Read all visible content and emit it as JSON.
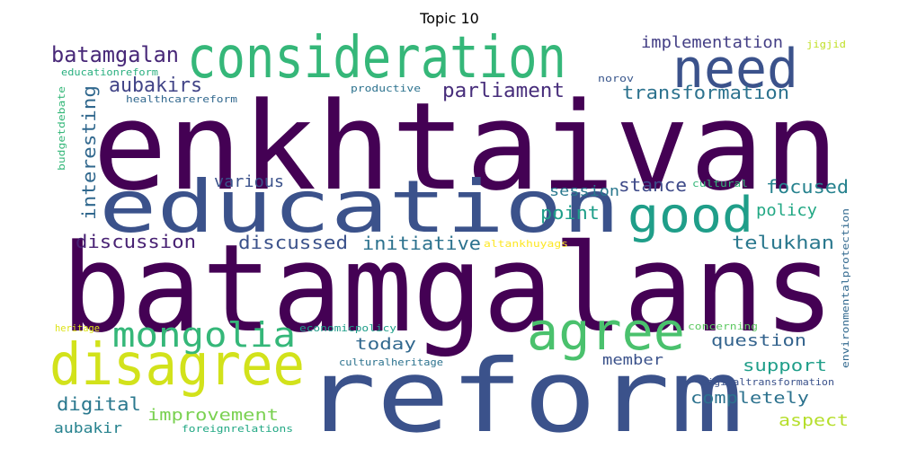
{
  "title": "Topic 10",
  "palette": {
    "purple": "#440154",
    "indigo": "#3b528b",
    "teal": "#21918c",
    "green": "#5ec962",
    "yellow": "#fde725"
  },
  "words": [
    {
      "text": "enkhtaivan",
      "color": "#440154",
      "weight": 1.0
    },
    {
      "text": "batamgalans",
      "color": "#440154",
      "weight": 0.98
    },
    {
      "text": "reform",
      "color": "#3b528b",
      "weight": 0.8
    },
    {
      "text": "education",
      "color": "#3b528b",
      "weight": 0.58
    },
    {
      "text": "consideration",
      "color": "#35b779",
      "weight": 0.47
    },
    {
      "text": "disagree",
      "color": "#d2e21b",
      "weight": 0.44
    },
    {
      "text": "need",
      "color": "#3b528b",
      "weight": 0.42
    },
    {
      "text": "agree",
      "color": "#4ac16d",
      "weight": 0.4
    },
    {
      "text": "good",
      "color": "#1f9e89",
      "weight": 0.38
    },
    {
      "text": "mongolia",
      "color": "#35b779",
      "weight": 0.26
    },
    {
      "text": "batamgalan",
      "color": "#482878",
      "weight": 0.17
    },
    {
      "text": "parliament",
      "color": "#472d7b",
      "weight": 0.16
    },
    {
      "text": "transformation",
      "color": "#2c728e",
      "weight": 0.15
    },
    {
      "text": "aubakirs",
      "color": "#414487",
      "weight": 0.15
    },
    {
      "text": "interesting",
      "color": "#31688e",
      "weight": 0.14
    },
    {
      "text": "implementation",
      "color": "#433e85",
      "weight": 0.13
    },
    {
      "text": "stance",
      "color": "#3e4a89",
      "weight": 0.14
    },
    {
      "text": "focused",
      "color": "#26828e",
      "weight": 0.14
    },
    {
      "text": "various",
      "color": "#3b528b",
      "weight": 0.13
    },
    {
      "text": "session",
      "color": "#2a788e",
      "weight": 0.12
    },
    {
      "text": "point",
      "color": "#1f9e89",
      "weight": 0.13
    },
    {
      "text": "policy",
      "color": "#22a884",
      "weight": 0.12
    },
    {
      "text": "discussion",
      "color": "#482173",
      "weight": 0.14
    },
    {
      "text": "discussed",
      "color": "#3b528b",
      "weight": 0.14
    },
    {
      "text": "initiative",
      "color": "#2c728e",
      "weight": 0.14
    },
    {
      "text": "telukhan",
      "color": "#2a788e",
      "weight": 0.14
    },
    {
      "text": "today",
      "color": "#31688e",
      "weight": 0.13
    },
    {
      "text": "question",
      "color": "#33638d",
      "weight": 0.13
    },
    {
      "text": "support",
      "color": "#1f9e89",
      "weight": 0.13
    },
    {
      "text": "member",
      "color": "#3b528b",
      "weight": 0.1
    },
    {
      "text": "digital",
      "color": "#2a788e",
      "weight": 0.13
    },
    {
      "text": "improvement",
      "color": "#7ad151",
      "weight": 0.13
    },
    {
      "text": "completely",
      "color": "#2c728e",
      "weight": 0.13
    },
    {
      "text": "aspect",
      "color": "#b5de2b",
      "weight": 0.13
    },
    {
      "text": "aubakir",
      "color": "#26828e",
      "weight": 0.12
    },
    {
      "text": "educationreform",
      "color": "#29af7f",
      "weight": 0.08
    },
    {
      "text": "healthcarereform",
      "color": "#31688e",
      "weight": 0.08
    },
    {
      "text": "budgetdebate",
      "color": "#35b779",
      "weight": 0.07
    },
    {
      "text": "productive",
      "color": "#2c728e",
      "weight": 0.08
    },
    {
      "text": "norov",
      "color": "#39568c",
      "weight": 0.07
    },
    {
      "text": "jigjid",
      "color": "#c0df25",
      "weight": 0.07
    },
    {
      "text": "cultural",
      "color": "#35b779",
      "weight": 0.07
    },
    {
      "text": "altankhuyags",
      "color": "#fde725",
      "weight": 0.07
    },
    {
      "text": "environmentalprotection",
      "color": "#31688e",
      "weight": 0.07
    },
    {
      "text": "heritage",
      "color": "#dde318",
      "weight": 0.07
    },
    {
      "text": "economicpolicy",
      "color": "#1f9e89",
      "weight": 0.07
    },
    {
      "text": "concerning",
      "color": "#5ec962",
      "weight": 0.07
    },
    {
      "text": "culturalheritage",
      "color": "#2c728e",
      "weight": 0.07
    },
    {
      "text": "digitaltransformation",
      "color": "#3b528b",
      "weight": 0.07
    },
    {
      "text": "foreignrelations",
      "color": "#22a884",
      "weight": 0.07
    }
  ]
}
